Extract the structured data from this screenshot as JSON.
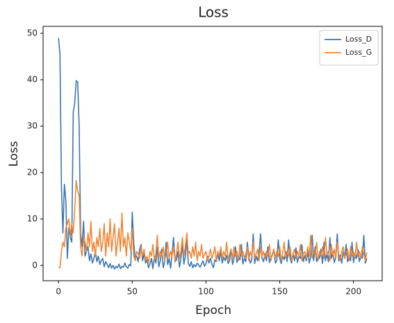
{
  "chart_data": {
    "type": "line",
    "title": "Loss",
    "xlabel": "Epoch",
    "ylabel": "Loss",
    "x": [
      0,
      1,
      2,
      3,
      4,
      5,
      6,
      7,
      8,
      9,
      10,
      11,
      12,
      13,
      14,
      15,
      16,
      17,
      18,
      19,
      20,
      21,
      22,
      23,
      24,
      25,
      26,
      27,
      28,
      29,
      30,
      31,
      32,
      33,
      34,
      35,
      36,
      37,
      38,
      39,
      40,
      41,
      42,
      43,
      44,
      45,
      46,
      47,
      48,
      49,
      50,
      51,
      52,
      53,
      54,
      55,
      56,
      57,
      58,
      59,
      60,
      61,
      62,
      63,
      64,
      65,
      66,
      67,
      68,
      69,
      70,
      71,
      72,
      73,
      74,
      75,
      76,
      77,
      78,
      79,
      80,
      81,
      82,
      83,
      84,
      85,
      86,
      87,
      88,
      89,
      90,
      91,
      92,
      93,
      94,
      95,
      96,
      97,
      98,
      99,
      100,
      101,
      102,
      103,
      104,
      105,
      106,
      107,
      108,
      109,
      110,
      111,
      112,
      113,
      114,
      115,
      116,
      117,
      118,
      119,
      120,
      121,
      122,
      123,
      124,
      125,
      126,
      127,
      128,
      129,
      130,
      131,
      132,
      133,
      134,
      135,
      136,
      137,
      138,
      139,
      140,
      141,
      142,
      143,
      144,
      145,
      146,
      147,
      148,
      149,
      150,
      151,
      152,
      153,
      154,
      155,
      156,
      157,
      158,
      159,
      160,
      161,
      162,
      163,
      164,
      165,
      166,
      167,
      168,
      169,
      170,
      171,
      172,
      173,
      174,
      175,
      176,
      177,
      178,
      179,
      180,
      181,
      182,
      183,
      184,
      185,
      186,
      187,
      188,
      189,
      190,
      191,
      192,
      193,
      194,
      195,
      196,
      197,
      198,
      199,
      200,
      201,
      202,
      203,
      204,
      205,
      206,
      207,
      208,
      209
    ],
    "series": [
      {
        "name": "Loss_D",
        "color": "#3b75af",
        "values": [
          49,
          45.5,
          17,
          7,
          17.5,
          14,
          1.5,
          8,
          6,
          5,
          33,
          35,
          39.8,
          39.5,
          30,
          7,
          4,
          9.5,
          2,
          3,
          4,
          1,
          2.5,
          0.5,
          1.5,
          3,
          0.8,
          2,
          0.2,
          1,
          1.5,
          -0.3,
          0.8,
          0.2,
          -0.5,
          0.4,
          -0.6,
          0,
          -0.8,
          -0.2,
          -0.5,
          0.3,
          -0.7,
          -0.2,
          -0.4,
          0.5,
          -0.3,
          -0.6,
          0.2,
          -0.1,
          11.5,
          5,
          1.5,
          2,
          0.8,
          3.5,
          4.5,
          1,
          2.5,
          0.5,
          1.2,
          -0.5,
          0.3,
          1.5,
          -0.7,
          2,
          0.5,
          4,
          -0.3,
          1,
          3.5,
          -0.5,
          0.8,
          5,
          0.2,
          1.5,
          -0.6,
          2.5,
          6,
          0.8,
          1.2,
          3,
          -0.4,
          1.5,
          4.5,
          0.3,
          2,
          5.5,
          0.5,
          -0.2,
          0.8,
          -0.5,
          0.2,
          -0.3,
          0.5,
          0.1,
          -0.4,
          0.3,
          1,
          -0.2,
          0.4,
          2,
          0.5,
          1.5,
          0.3,
          -0.5,
          1.2,
          0.8,
          2.5,
          1,
          3,
          0.5,
          1.8,
          1,
          2.2,
          0.4,
          1,
          3.5,
          0.2,
          1.5,
          4,
          0.6,
          2,
          1.2,
          4.5,
          0.3,
          1.5,
          0.8,
          5,
          2,
          0.5,
          1.2,
          6.8,
          0.4,
          2,
          1,
          3,
          6.8,
          1.5,
          0.8,
          2.5,
          1,
          4,
          0.6,
          1.8,
          2.2,
          3.5,
          0.5,
          1,
          5.5,
          1.5,
          0.4,
          2,
          1.2,
          3,
          0.8,
          5.5,
          1.5,
          0.5,
          2.5,
          1,
          3.8,
          0.6,
          2,
          1.5,
          4.5,
          0.8,
          2.2,
          1,
          3,
          0.5,
          2,
          6.5,
          1,
          4,
          0.8,
          2,
          1.5,
          3.5,
          0.4,
          5,
          1,
          2.5,
          0.8,
          6,
          1.5,
          3,
          0.6,
          1.8,
          6.8,
          1,
          2.2,
          0.5,
          3,
          1.5,
          4.5,
          0.8,
          2,
          1,
          5,
          0.6,
          2.5,
          1.5,
          3.5,
          0.8,
          2,
          1.5,
          6.5,
          0.5,
          1.5
        ]
      },
      {
        "name": "Loss_G",
        "color": "#ef8636",
        "values": [
          -0.5,
          -0.5,
          3,
          5,
          4,
          8,
          9,
          10,
          6,
          9,
          7,
          12,
          18.3,
          16,
          15,
          4,
          2,
          6,
          5,
          3,
          7,
          4,
          9.5,
          3,
          5,
          2,
          6,
          4,
          8,
          3,
          5,
          9,
          2,
          7,
          4,
          10,
          3,
          6,
          9,
          2,
          5,
          8,
          3,
          11.3,
          4,
          6,
          2,
          7,
          5,
          3,
          8,
          2,
          1,
          3,
          2.5,
          1.5,
          4,
          2,
          3.5,
          1,
          2,
          0.5,
          3,
          2,
          4.5,
          1,
          2.5,
          6.5,
          1.5,
          3,
          2,
          4,
          1,
          2.5,
          5,
          1.5,
          3,
          2,
          4,
          1,
          2.5,
          5,
          1.5,
          3,
          6,
          2,
          4,
          7,
          2.5,
          3,
          1.5,
          4,
          2,
          5,
          1,
          3,
          2,
          4.5,
          1.5,
          2.5,
          3,
          1,
          2,
          3.5,
          1.5,
          2.5,
          4,
          1,
          3,
          2,
          4,
          1.5,
          3,
          2,
          5,
          1,
          2.5,
          3.5,
          1.5,
          4,
          2,
          3,
          1,
          4.5,
          2,
          3,
          1.5,
          2.5,
          4,
          1,
          3,
          2,
          5,
          1.5,
          2.5,
          3.5,
          1,
          4,
          2,
          3,
          1.5,
          3,
          2,
          4.5,
          1,
          2.5,
          3.5,
          1.5,
          3,
          2,
          4,
          1,
          2.5,
          5,
          1.5,
          3,
          2,
          4,
          1,
          2.5,
          3.5,
          1.5,
          3,
          2,
          4.5,
          1,
          2.5,
          3,
          1.5,
          4,
          2,
          6.5,
          1.5,
          3,
          2.5,
          5,
          1,
          3,
          2,
          4,
          1.5,
          6,
          2.5,
          3,
          1,
          4.5,
          2,
          3.5,
          1.5,
          5,
          2.5,
          1,
          3,
          4,
          1.5,
          2.5,
          3.5,
          1,
          4,
          2,
          3,
          1.5,
          5,
          2,
          3,
          1.5,
          4,
          2.5,
          1,
          2.8
        ]
      }
    ],
    "xlim": [
      -10.45,
      219.45
    ],
    "xticks": [
      0,
      50,
      100,
      150,
      200
    ],
    "ylim": [
      -3.3,
      51.5
    ],
    "yticks": [
      0,
      10,
      20,
      30,
      40,
      50
    ],
    "legend": "upper right"
  }
}
